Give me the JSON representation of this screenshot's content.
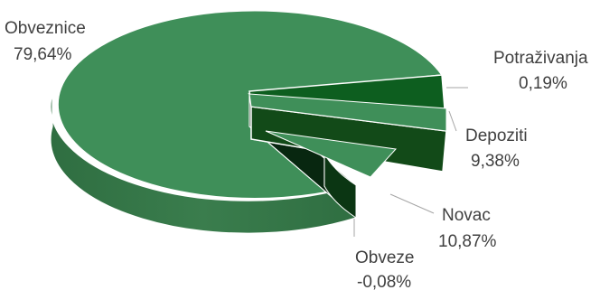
{
  "chart_data": {
    "type": "pie",
    "style": "3d-exploded",
    "slices": [
      {
        "label": "Obveznice",
        "value": 79.64,
        "value_label": "79,64%",
        "color": "#3f8f59"
      },
      {
        "label": "Potraživanja",
        "value": 0.19,
        "value_label": "0,19%",
        "color": "#0d5e1f"
      },
      {
        "label": "Depoziti",
        "value": 9.38,
        "value_label": "9,38%",
        "color": "#124a18"
      },
      {
        "label": "Novac",
        "value": 10.87,
        "value_label": "10,87%",
        "color": "#0a2f10"
      },
      {
        "label": "Obveze",
        "value": -0.08,
        "value_label": "-0,08%",
        "color": "#3f8f59"
      }
    ],
    "legend": "none"
  }
}
